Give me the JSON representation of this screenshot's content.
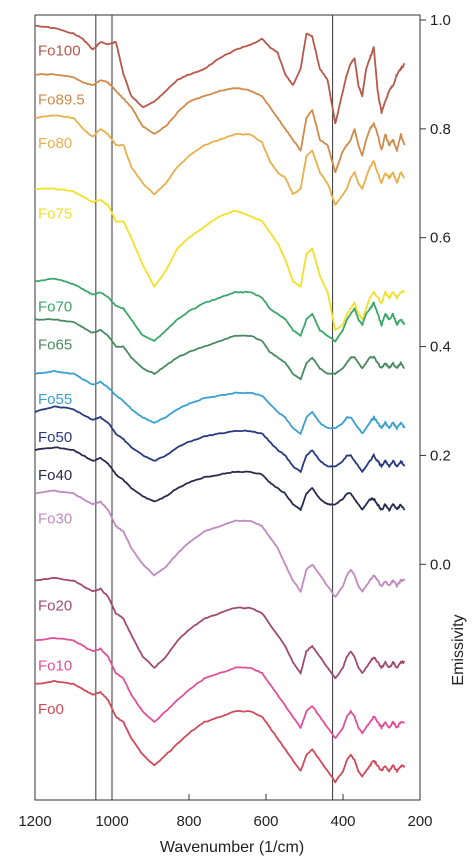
{
  "chart_data": {
    "type": "line",
    "title": "",
    "xlabel": "Wavenumber (1/cm)",
    "ylabel": "Emissivity",
    "xlim": [
      1200,
      200
    ],
    "ylim": [
      -0.4,
      1.0
    ],
    "x_ticks": [
      1200,
      1000,
      800,
      600,
      400,
      200
    ],
    "x_tick_labels": [
      "1200",
      "1000",
      "800",
      "600",
      "400",
      "200"
    ],
    "y_ticks": [
      0.0,
      0.2,
      0.4,
      0.6,
      0.8,
      1.0
    ],
    "y_tick_labels": [
      "0.0",
      "0.2",
      "0.4",
      "0.6",
      "0.8",
      "1.0"
    ],
    "vertical_lines": [
      1042,
      1000,
      427
    ],
    "grid": false,
    "legend": "series labels at left of each curve",
    "x": [
      1200,
      1150,
      1100,
      1075,
      1050,
      1030,
      1010,
      990,
      970,
      950,
      920,
      890,
      860,
      830,
      800,
      760,
      720,
      680,
      640,
      610,
      590,
      570,
      550,
      530,
      510,
      495,
      480,
      460,
      440,
      420,
      400,
      390,
      380,
      370,
      360,
      350,
      340,
      330,
      320,
      310,
      300,
      290,
      280,
      270,
      260,
      250,
      240
    ],
    "series": [
      {
        "name": "Fo100",
        "color": "#b8584a",
        "values": [
          0.99,
          0.985,
          0.975,
          0.965,
          0.945,
          0.96,
          0.955,
          0.96,
          0.9,
          0.86,
          0.84,
          0.85,
          0.87,
          0.89,
          0.9,
          0.91,
          0.93,
          0.945,
          0.955,
          0.965,
          0.95,
          0.94,
          0.9,
          0.88,
          0.91,
          0.975,
          0.97,
          0.91,
          0.89,
          0.81,
          0.87,
          0.9,
          0.92,
          0.93,
          0.88,
          0.86,
          0.91,
          0.93,
          0.95,
          0.87,
          0.83,
          0.85,
          0.87,
          0.88,
          0.9,
          0.91,
          0.92
        ]
      },
      {
        "name": "Fo89.5",
        "color": "#d08a4a",
        "values": [
          0.9,
          0.9,
          0.895,
          0.885,
          0.88,
          0.89,
          0.885,
          0.87,
          0.855,
          0.84,
          0.805,
          0.79,
          0.805,
          0.83,
          0.85,
          0.86,
          0.87,
          0.875,
          0.87,
          0.86,
          0.84,
          0.82,
          0.8,
          0.78,
          0.76,
          0.82,
          0.835,
          0.78,
          0.77,
          0.72,
          0.76,
          0.77,
          0.78,
          0.8,
          0.77,
          0.75,
          0.78,
          0.8,
          0.81,
          0.79,
          0.76,
          0.79,
          0.77,
          0.78,
          0.76,
          0.79,
          0.77
        ]
      },
      {
        "name": "Fo80",
        "color": "#e8b04a",
        "values": [
          0.82,
          0.825,
          0.82,
          0.8,
          0.785,
          0.8,
          0.79,
          0.77,
          0.77,
          0.73,
          0.7,
          0.68,
          0.7,
          0.73,
          0.75,
          0.77,
          0.78,
          0.79,
          0.79,
          0.775,
          0.74,
          0.72,
          0.71,
          0.68,
          0.69,
          0.75,
          0.76,
          0.72,
          0.7,
          0.66,
          0.68,
          0.69,
          0.71,
          0.72,
          0.7,
          0.69,
          0.71,
          0.73,
          0.74,
          0.72,
          0.7,
          0.72,
          0.71,
          0.72,
          0.7,
          0.72,
          0.71
        ]
      },
      {
        "name": "Fo75",
        "color": "#f2e02a",
        "values": [
          0.69,
          0.69,
          0.685,
          0.675,
          0.665,
          0.67,
          0.66,
          0.63,
          0.63,
          0.6,
          0.55,
          0.51,
          0.54,
          0.58,
          0.6,
          0.62,
          0.64,
          0.65,
          0.64,
          0.63,
          0.61,
          0.59,
          0.56,
          0.52,
          0.51,
          0.57,
          0.58,
          0.53,
          0.5,
          0.43,
          0.44,
          0.46,
          0.47,
          0.48,
          0.46,
          0.45,
          0.47,
          0.49,
          0.5,
          0.49,
          0.48,
          0.5,
          0.49,
          0.5,
          0.49,
          0.5,
          0.5
        ]
      },
      {
        "name": "Fo70",
        "color": "#3aa86a",
        "values": [
          0.52,
          0.525,
          0.515,
          0.505,
          0.495,
          0.5,
          0.49,
          0.475,
          0.47,
          0.45,
          0.42,
          0.41,
          0.43,
          0.45,
          0.465,
          0.48,
          0.49,
          0.5,
          0.5,
          0.49,
          0.47,
          0.46,
          0.45,
          0.43,
          0.42,
          0.45,
          0.46,
          0.43,
          0.42,
          0.41,
          0.43,
          0.45,
          0.46,
          0.47,
          0.45,
          0.44,
          0.46,
          0.47,
          0.48,
          0.46,
          0.44,
          0.46,
          0.45,
          0.46,
          0.44,
          0.45,
          0.44
        ]
      },
      {
        "name": "Fo65",
        "color": "#4a8a60",
        "values": [
          0.45,
          0.45,
          0.445,
          0.435,
          0.425,
          0.43,
          0.42,
          0.4,
          0.4,
          0.38,
          0.36,
          0.35,
          0.365,
          0.38,
          0.39,
          0.4,
          0.41,
          0.42,
          0.42,
          0.41,
          0.39,
          0.38,
          0.37,
          0.35,
          0.34,
          0.37,
          0.38,
          0.36,
          0.35,
          0.35,
          0.36,
          0.37,
          0.38,
          0.38,
          0.37,
          0.36,
          0.37,
          0.38,
          0.38,
          0.37,
          0.36,
          0.37,
          0.36,
          0.37,
          0.36,
          0.37,
          0.36
        ]
      },
      {
        "name": "Fo55",
        "color": "#3aa0d0",
        "values": [
          0.35,
          0.355,
          0.35,
          0.34,
          0.33,
          0.335,
          0.325,
          0.31,
          0.3,
          0.285,
          0.27,
          0.26,
          0.27,
          0.285,
          0.295,
          0.305,
          0.31,
          0.315,
          0.315,
          0.31,
          0.295,
          0.28,
          0.27,
          0.25,
          0.24,
          0.27,
          0.28,
          0.26,
          0.25,
          0.25,
          0.26,
          0.27,
          0.27,
          0.26,
          0.25,
          0.24,
          0.25,
          0.26,
          0.27,
          0.26,
          0.25,
          0.26,
          0.25,
          0.26,
          0.25,
          0.26,
          0.25
        ]
      },
      {
        "name": "Fo50",
        "color": "#2a3a80",
        "values": [
          0.28,
          0.29,
          0.285,
          0.275,
          0.265,
          0.27,
          0.26,
          0.24,
          0.23,
          0.215,
          0.2,
          0.19,
          0.2,
          0.215,
          0.225,
          0.235,
          0.24,
          0.245,
          0.245,
          0.24,
          0.225,
          0.21,
          0.2,
          0.18,
          0.17,
          0.2,
          0.21,
          0.19,
          0.18,
          0.18,
          0.19,
          0.2,
          0.2,
          0.19,
          0.18,
          0.17,
          0.18,
          0.19,
          0.2,
          0.19,
          0.18,
          0.19,
          0.18,
          0.19,
          0.18,
          0.19,
          0.18
        ]
      },
      {
        "name": "Fo40",
        "color": "#2a2a50",
        "values": [
          0.21,
          0.215,
          0.21,
          0.2,
          0.19,
          0.195,
          0.185,
          0.165,
          0.155,
          0.14,
          0.125,
          0.115,
          0.125,
          0.14,
          0.15,
          0.16,
          0.165,
          0.17,
          0.17,
          0.165,
          0.15,
          0.14,
          0.13,
          0.11,
          0.1,
          0.13,
          0.14,
          0.12,
          0.11,
          0.11,
          0.12,
          0.13,
          0.13,
          0.12,
          0.11,
          0.1,
          0.11,
          0.12,
          0.12,
          0.11,
          0.1,
          0.11,
          0.1,
          0.11,
          0.1,
          0.11,
          0.1
        ]
      },
      {
        "name": "Fo30",
        "color": "#c08ac0",
        "values": [
          0.13,
          0.135,
          0.13,
          0.12,
          0.11,
          0.115,
          0.1,
          0.07,
          0.06,
          0.03,
          0.0,
          -0.02,
          -0.005,
          0.02,
          0.04,
          0.06,
          0.07,
          0.08,
          0.08,
          0.07,
          0.05,
          0.03,
          0.0,
          -0.03,
          -0.05,
          -0.01,
          0.0,
          -0.02,
          -0.04,
          -0.06,
          -0.04,
          -0.02,
          -0.01,
          -0.02,
          -0.04,
          -0.05,
          -0.04,
          -0.03,
          -0.02,
          -0.03,
          -0.04,
          -0.03,
          -0.04,
          -0.03,
          -0.04,
          -0.03,
          -0.03
        ]
      },
      {
        "name": "Fo20",
        "color": "#a04a70",
        "values": [
          -0.03,
          -0.025,
          -0.03,
          -0.04,
          -0.05,
          -0.045,
          -0.06,
          -0.09,
          -0.1,
          -0.13,
          -0.17,
          -0.19,
          -0.17,
          -0.14,
          -0.12,
          -0.1,
          -0.09,
          -0.08,
          -0.08,
          -0.09,
          -0.11,
          -0.13,
          -0.15,
          -0.18,
          -0.2,
          -0.16,
          -0.15,
          -0.17,
          -0.19,
          -0.21,
          -0.19,
          -0.17,
          -0.16,
          -0.17,
          -0.19,
          -0.2,
          -0.19,
          -0.18,
          -0.17,
          -0.18,
          -0.19,
          -0.18,
          -0.19,
          -0.18,
          -0.19,
          -0.18,
          -0.18
        ]
      },
      {
        "name": "Fo10",
        "color": "#e0509a",
        "values": [
          -0.14,
          -0.135,
          -0.14,
          -0.15,
          -0.16,
          -0.155,
          -0.17,
          -0.2,
          -0.21,
          -0.24,
          -0.27,
          -0.29,
          -0.27,
          -0.25,
          -0.23,
          -0.21,
          -0.2,
          -0.19,
          -0.19,
          -0.2,
          -0.22,
          -0.24,
          -0.26,
          -0.28,
          -0.3,
          -0.27,
          -0.26,
          -0.28,
          -0.3,
          -0.32,
          -0.3,
          -0.28,
          -0.27,
          -0.28,
          -0.3,
          -0.31,
          -0.3,
          -0.29,
          -0.28,
          -0.29,
          -0.3,
          -0.29,
          -0.3,
          -0.29,
          -0.3,
          -0.29,
          -0.29
        ]
      },
      {
        "name": "Fo0",
        "color": "#d04a5a",
        "values": [
          -0.22,
          -0.215,
          -0.22,
          -0.23,
          -0.24,
          -0.235,
          -0.25,
          -0.28,
          -0.29,
          -0.32,
          -0.35,
          -0.37,
          -0.35,
          -0.33,
          -0.31,
          -0.29,
          -0.28,
          -0.27,
          -0.27,
          -0.28,
          -0.3,
          -0.32,
          -0.34,
          -0.36,
          -0.38,
          -0.35,
          -0.34,
          -0.36,
          -0.38,
          -0.4,
          -0.38,
          -0.36,
          -0.35,
          -0.36,
          -0.38,
          -0.39,
          -0.38,
          -0.37,
          -0.36,
          -0.37,
          -0.38,
          -0.37,
          -0.38,
          -0.37,
          -0.38,
          -0.37,
          -0.37
        ]
      }
    ]
  }
}
